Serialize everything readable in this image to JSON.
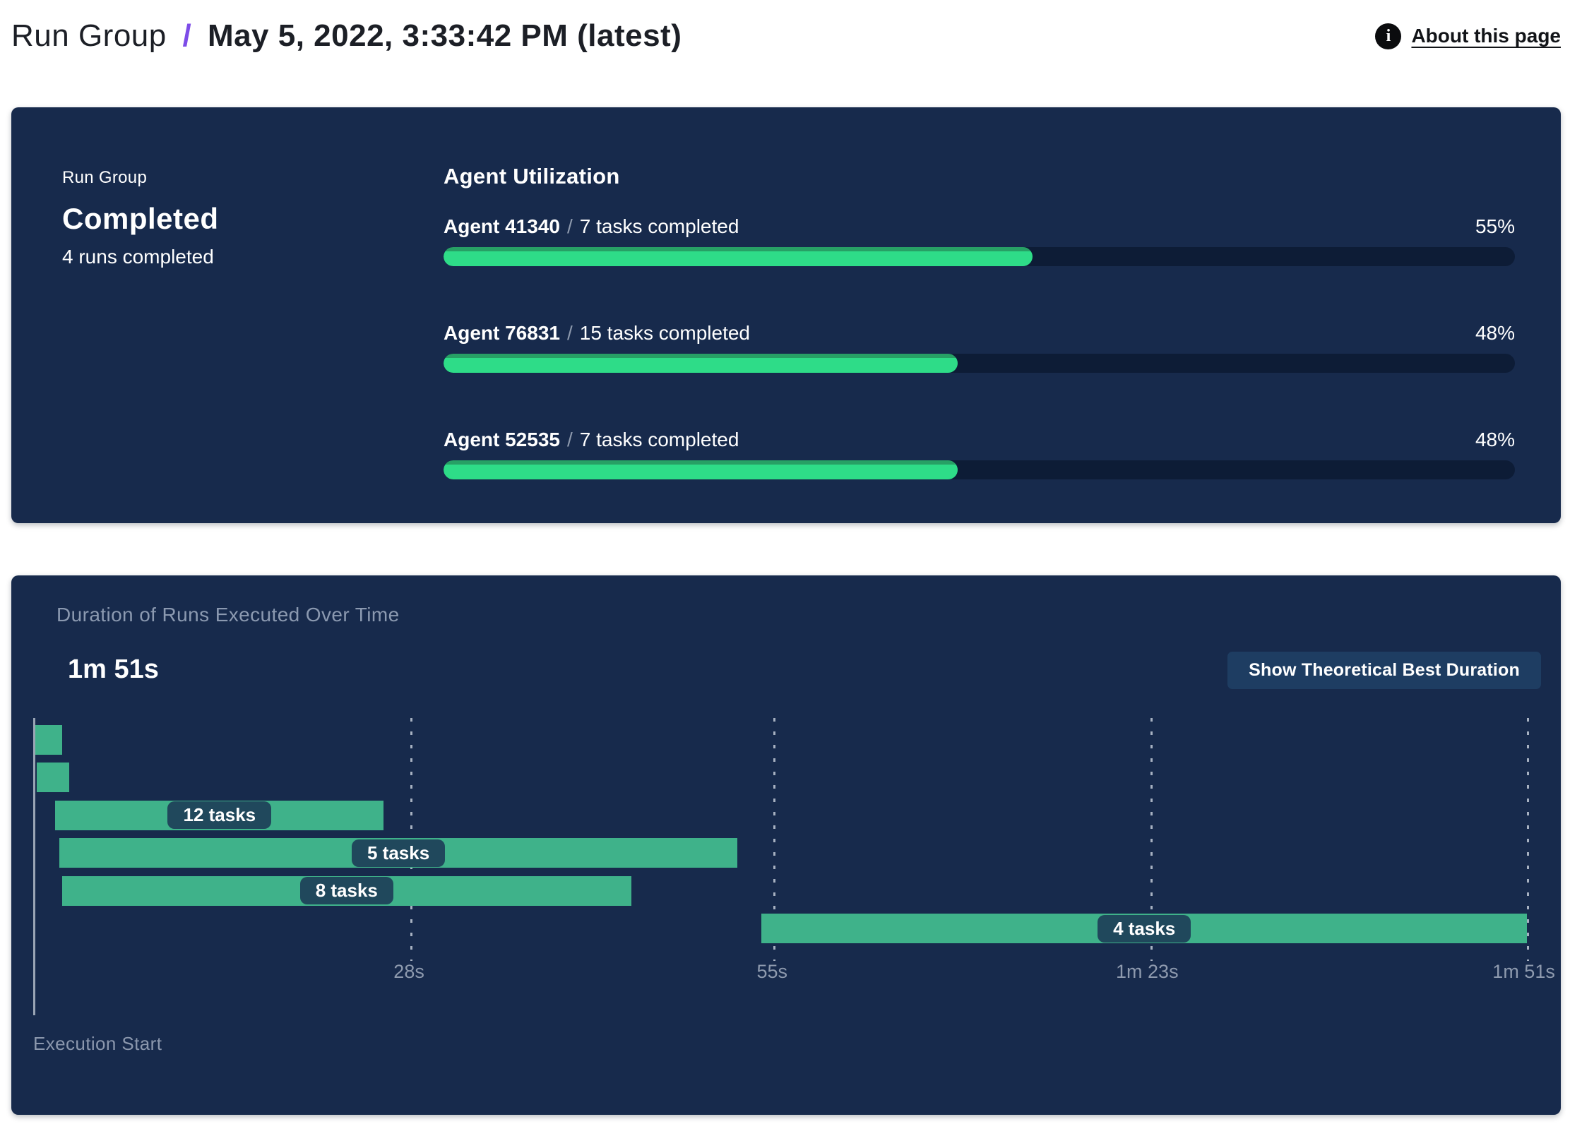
{
  "header": {
    "breadcrumb_root": "Run Group",
    "separator": "/",
    "title": "May 5, 2022, 3:33:42 PM (latest)",
    "about_link": "About this page",
    "info_icon_glyph": "i"
  },
  "summary": {
    "label": "Run Group",
    "status": "Completed",
    "subtext": "4 runs completed"
  },
  "utilization": {
    "heading": "Agent Utilization",
    "agents": [
      {
        "name": "Agent 41340",
        "separator": "/",
        "tasks": "7 tasks completed",
        "percent": 55
      },
      {
        "name": "Agent 76831",
        "separator": "/",
        "tasks": "15 tasks completed",
        "percent": 48
      },
      {
        "name": "Agent 52535",
        "separator": "/",
        "tasks": "7 tasks completed",
        "percent": 48
      }
    ]
  },
  "duration_chart": {
    "title": "Duration of Runs Executed Over Time",
    "total_duration": "1m 51s",
    "button_label": "Show Theoretical Best Duration",
    "x_axis_label": "Execution Start",
    "axis_max_seconds": 111,
    "ticks": [
      {
        "label": "28s",
        "seconds": 28
      },
      {
        "label": "55s",
        "seconds": 55
      },
      {
        "label": "1m 23s",
        "seconds": 83
      },
      {
        "label": "1m 51s",
        "seconds": 111
      }
    ],
    "runs": [
      {
        "start_s": 0.1,
        "end_s": 2.1,
        "label": ""
      },
      {
        "start_s": 0.2,
        "end_s": 2.6,
        "label": ""
      },
      {
        "start_s": 1.6,
        "end_s": 26.0,
        "label": "12 tasks"
      },
      {
        "start_s": 1.9,
        "end_s": 52.3,
        "label": "5 tasks"
      },
      {
        "start_s": 2.1,
        "end_s": 44.4,
        "label": "8 tasks"
      },
      {
        "start_s": 54.1,
        "end_s": 111.0,
        "label": "4 tasks"
      }
    ]
  },
  "chart_data": [
    {
      "type": "bar",
      "title": "Agent Utilization",
      "categories": [
        "Agent 41340",
        "Agent 76831",
        "Agent 52535"
      ],
      "values": [
        55,
        48,
        48
      ],
      "value_unit": "%",
      "annotations": [
        "7 tasks completed",
        "15 tasks completed",
        "7 tasks completed"
      ],
      "xlim": [
        0,
        100
      ]
    },
    {
      "type": "gantt",
      "title": "Duration of Runs Executed Over Time",
      "total_duration_label": "1m 51s",
      "x_ticks_seconds": [
        28,
        55,
        83,
        111
      ],
      "x_tick_labels": [
        "28s",
        "55s",
        "1m 23s",
        "1m 51s"
      ],
      "xlabel": "Execution Start",
      "bars": [
        {
          "start_s": 0.1,
          "end_s": 2.1,
          "tasks": null
        },
        {
          "start_s": 0.2,
          "end_s": 2.6,
          "tasks": null
        },
        {
          "start_s": 1.6,
          "end_s": 26.0,
          "tasks": 12
        },
        {
          "start_s": 1.9,
          "end_s": 52.3,
          "tasks": 5
        },
        {
          "start_s": 2.1,
          "end_s": 44.4,
          "tasks": 8
        },
        {
          "start_s": 54.1,
          "end_s": 111.0,
          "tasks": 4
        }
      ]
    }
  ],
  "colors": {
    "card_bg": "#172a4c",
    "accent_purple": "#7d4ce8",
    "progress_fill": "#2edc88",
    "progress_rim": "#27a065",
    "progress_track": "#0d1c36",
    "gantt_bar": "#3fb28a",
    "pill_bg": "#20485c",
    "muted_text": "#8b99b0",
    "button_bg": "#1e3d62"
  }
}
